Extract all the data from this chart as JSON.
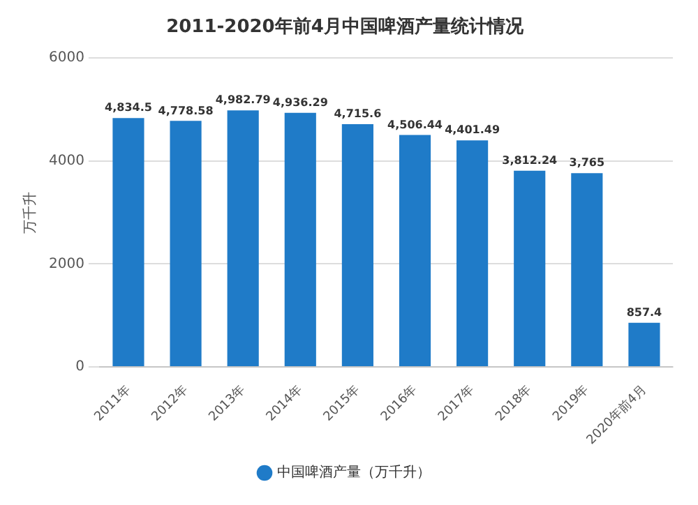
{
  "chart_data": {
    "type": "bar",
    "title": "2011-2020年前4月中国啤酒产量统计情况",
    "ylabel": "万千升",
    "categories": [
      "2011年",
      "2012年",
      "2013年",
      "2014年",
      "2015年",
      "2016年",
      "2017年",
      "2018年",
      "2019年",
      "2020年前4月"
    ],
    "series": [
      {
        "name": "中国啤酒产量（万千升）",
        "color": "#1f7bc8",
        "values": [
          4834.5,
          4778.58,
          4982.79,
          4936.29,
          4715.6,
          4506.44,
          4401.49,
          3812.24,
          3765,
          857.4
        ],
        "value_labels": [
          "4,834.5",
          "4,778.58",
          "4,982.79",
          "4,936.29",
          "4,715.6",
          "4,506.44",
          "4,401.49",
          "3,812.24",
          "3,765",
          "857.4"
        ]
      }
    ],
    "ylim": [
      0,
      6000
    ],
    "yticks": [
      0,
      2000,
      4000,
      6000
    ],
    "grid": "y",
    "legend": "bottom"
  }
}
